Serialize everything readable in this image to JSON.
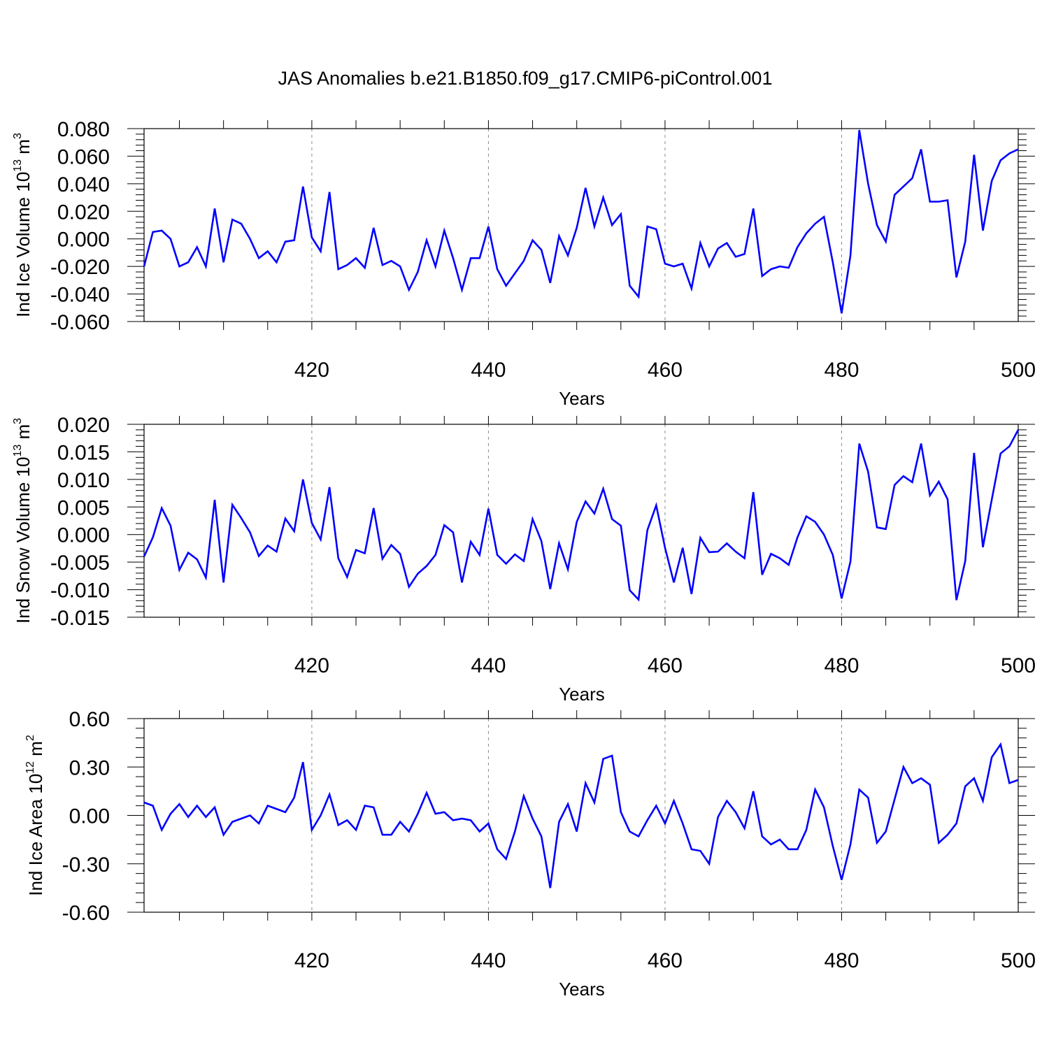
{
  "title": "JAS Anomalies b.e21.B1850.f09_g17.CMIP6-piControl.001",
  "line_color": "#0000ff",
  "chart_data": [
    {
      "type": "line",
      "ylabel": "Ind Ice Volume 10",
      "ylabel_exp": "13",
      "ylabel_unit": " m",
      "ylabel_unit_exp": "3",
      "xlabel": "Years",
      "xlim": [
        401,
        500
      ],
      "ylim": [
        -0.06,
        0.08
      ],
      "yticks": [
        "0.080",
        "0.060",
        "0.040",
        "0.020",
        "0.000",
        "-0.020",
        "-0.040",
        "-0.060"
      ],
      "ytick_values": [
        0.08,
        0.06,
        0.04,
        0.02,
        0.0,
        -0.02,
        -0.04,
        -0.06
      ],
      "xticks": [
        "420",
        "440",
        "460",
        "480",
        "500"
      ],
      "xtick_values": [
        420,
        440,
        460,
        480,
        500
      ],
      "x_start": 401,
      "values": [
        -0.02,
        0.005,
        0.006,
        0.0,
        -0.02,
        -0.017,
        -0.006,
        -0.02,
        0.022,
        -0.017,
        0.014,
        0.011,
        0.0,
        -0.014,
        -0.009,
        -0.017,
        -0.002,
        -0.001,
        0.038,
        0.001,
        -0.009,
        0.034,
        -0.022,
        -0.019,
        -0.014,
        -0.021,
        0.008,
        -0.019,
        -0.016,
        -0.02,
        -0.037,
        -0.024,
        -0.001,
        -0.02,
        0.006,
        -0.014,
        -0.037,
        -0.014,
        -0.014,
        0.009,
        -0.022,
        -0.034,
        -0.025,
        -0.016,
        -0.001,
        -0.008,
        -0.032,
        0.002,
        -0.012,
        0.008,
        0.037,
        0.009,
        0.03,
        0.01,
        0.018,
        -0.034,
        -0.042,
        0.009,
        0.007,
        -0.018,
        -0.02,
        -0.018,
        -0.036,
        -0.003,
        -0.02,
        -0.007,
        -0.003,
        -0.013,
        -0.011,
        0.022,
        -0.027,
        -0.022,
        -0.02,
        -0.021,
        -0.006,
        0.004,
        0.011,
        0.016,
        -0.017,
        -0.054,
        -0.012,
        0.079,
        0.04,
        0.01,
        -0.002,
        0.032,
        0.038,
        0.044,
        0.065,
        0.027,
        0.027,
        0.028,
        -0.028,
        -0.002,
        0.061,
        0.006,
        0.042,
        0.057,
        0.062,
        0.065
      ]
    },
    {
      "type": "line",
      "ylabel": "Ind Snow Volume 10",
      "ylabel_exp": "13",
      "ylabel_unit": " m",
      "ylabel_unit_exp": "3",
      "xlabel": "Years",
      "xlim": [
        401,
        500
      ],
      "ylim": [
        -0.015,
        0.02
      ],
      "yticks": [
        "0.020",
        "0.015",
        "0.010",
        "0.005",
        "0.000",
        "-0.005",
        "-0.010",
        "-0.015"
      ],
      "ytick_values": [
        0.02,
        0.015,
        0.01,
        0.005,
        0.0,
        -0.005,
        -0.01,
        -0.015
      ],
      "xticks": [
        "420",
        "440",
        "460",
        "480",
        "500"
      ],
      "xtick_values": [
        420,
        440,
        460,
        480,
        500
      ],
      "x_start": 401,
      "values": [
        -0.004,
        -0.0005,
        0.0048,
        0.0016,
        -0.0064,
        -0.0033,
        -0.0045,
        -0.0078,
        0.0063,
        -0.0087,
        0.0054,
        0.003,
        0.0004,
        -0.0039,
        -0.002,
        -0.0031,
        0.0029,
        0.0006,
        0.01,
        0.0021,
        -0.0009,
        0.0086,
        -0.0043,
        -0.0077,
        -0.0028,
        -0.0034,
        0.0048,
        -0.0044,
        -0.0019,
        -0.0035,
        -0.0095,
        -0.0071,
        -0.0057,
        -0.0037,
        0.0017,
        0.0004,
        -0.0087,
        -0.0013,
        -0.0037,
        0.0047,
        -0.0037,
        -0.0053,
        -0.0036,
        -0.0048,
        0.0028,
        -0.0012,
        -0.0099,
        -0.0016,
        -0.0063,
        0.0023,
        0.006,
        0.0038,
        0.0083,
        0.0028,
        0.0016,
        -0.0101,
        -0.0118,
        0.0008,
        0.0053,
        -0.0024,
        -0.0087,
        -0.0024,
        -0.0108,
        -0.0006,
        -0.0032,
        -0.0031,
        -0.0016,
        -0.0031,
        -0.0043,
        0.0077,
        -0.0073,
        -0.0035,
        -0.0043,
        -0.0055,
        -0.0005,
        0.0033,
        0.0023,
        0.0,
        -0.0037,
        -0.0116,
        -0.0049,
        0.0165,
        0.0114,
        0.0013,
        0.001,
        0.009,
        0.0106,
        0.0095,
        0.0165,
        0.0071,
        0.0096,
        0.0064,
        -0.0119,
        -0.0048,
        0.0148,
        -0.0023,
        0.0063,
        0.0147,
        0.016,
        0.019
      ]
    },
    {
      "type": "line",
      "ylabel": "Ind Ice Area 10",
      "ylabel_exp": "12",
      "ylabel_unit": " m",
      "ylabel_unit_exp": "2",
      "xlabel": "Years",
      "xlim": [
        401,
        500
      ],
      "ylim": [
        -0.6,
        0.6
      ],
      "yticks": [
        "0.60",
        "0.30",
        "0.00",
        "-0.30",
        "-0.60"
      ],
      "ytick_values": [
        0.6,
        0.3,
        0.0,
        -0.3,
        -0.6
      ],
      "xticks": [
        "420",
        "440",
        "460",
        "480",
        "500"
      ],
      "xtick_values": [
        420,
        440,
        460,
        480,
        500
      ],
      "x_start": 401,
      "values": [
        0.08,
        0.06,
        -0.09,
        0.01,
        0.07,
        -0.01,
        0.06,
        -0.01,
        0.05,
        -0.12,
        -0.04,
        -0.02,
        0.0,
        -0.05,
        0.06,
        0.04,
        0.02,
        0.11,
        0.33,
        -0.09,
        0.0,
        0.13,
        -0.06,
        -0.03,
        -0.09,
        0.06,
        0.05,
        -0.12,
        -0.12,
        -0.04,
        -0.1,
        0.01,
        0.14,
        0.01,
        0.02,
        -0.03,
        -0.02,
        -0.03,
        -0.1,
        -0.05,
        -0.21,
        -0.27,
        -0.1,
        0.12,
        -0.02,
        -0.13,
        -0.45,
        -0.04,
        0.07,
        -0.1,
        0.2,
        0.08,
        0.35,
        0.37,
        0.02,
        -0.1,
        -0.13,
        -0.03,
        0.06,
        -0.05,
        0.09,
        -0.05,
        -0.21,
        -0.22,
        -0.3,
        -0.01,
        0.09,
        0.02,
        -0.08,
        0.15,
        -0.13,
        -0.18,
        -0.15,
        -0.21,
        -0.21,
        -0.09,
        0.16,
        0.05,
        -0.19,
        -0.4,
        -0.18,
        0.16,
        0.11,
        -0.17,
        -0.1,
        0.1,
        0.3,
        0.2,
        0.23,
        0.19,
        -0.17,
        -0.12,
        -0.05,
        0.18,
        0.23,
        0.09,
        0.36,
        0.44,
        0.2,
        0.22
      ]
    }
  ]
}
